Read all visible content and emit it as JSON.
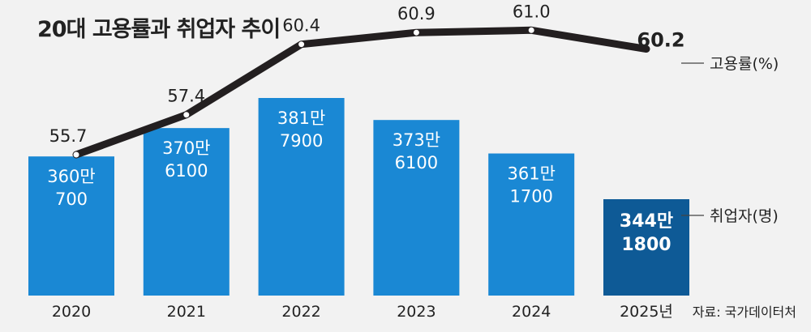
{
  "title": "20대 고용률과 취업자 추이",
  "source": "자료: 국가데이터처",
  "chart_data": {
    "type": "bar+line",
    "title": "20대 고용률과 취업자 추이",
    "categories": [
      "2020",
      "2021",
      "2022",
      "2023",
      "2024",
      "2025년"
    ],
    "series": [
      {
        "name": "취업자(명)",
        "type": "bar",
        "values": [
          3600700,
          3706100,
          3817900,
          3736100,
          3611700,
          3441800
        ],
        "labels_line1": [
          "360만",
          "370만",
          "381만",
          "373만",
          "361만",
          "344만"
        ],
        "labels_line2": [
          "700",
          "6100",
          "7900",
          "6100",
          "1700",
          "1800"
        ],
        "color": "#1a88d4",
        "highlight_color": "#0e5a96"
      },
      {
        "name": "고용률(%)",
        "type": "line",
        "values": [
          55.7,
          57.4,
          60.4,
          60.9,
          61.0,
          60.2
        ],
        "value_labels": [
          "55.7",
          "57.4",
          "60.4",
          "60.9",
          "61.0",
          "60.2"
        ],
        "color": "#231f20"
      }
    ],
    "legend": {
      "line_label": "고용률(%)",
      "bar_label": "취업자(명)",
      "placement": "right"
    },
    "highlight_category": "2025년"
  }
}
